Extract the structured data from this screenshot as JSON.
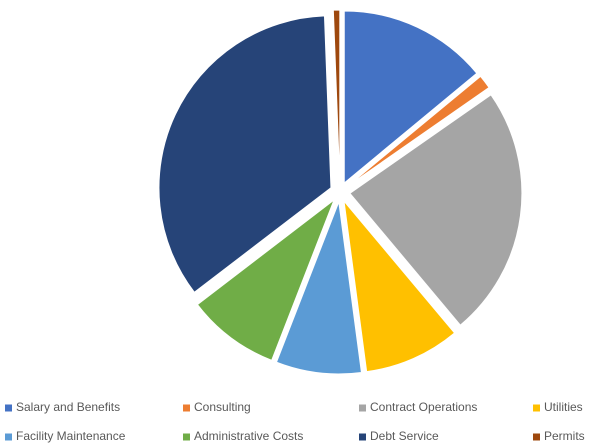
{
  "chart_data": {
    "type": "pie",
    "categories": [
      "Salary and Benefits",
      "Consulting",
      "Contract Operations",
      "Utilities",
      "Facility Maintenance",
      "Administrative Costs",
      "Debt Service",
      "Permits"
    ],
    "values": [
      14,
      1.3,
      23.6,
      9,
      8,
      8.7,
      34.8,
      0.6
    ],
    "colors": [
      "#4472c4",
      "#ed7d31",
      "#a5a5a5",
      "#ffc000",
      "#5b9bd5",
      "#70ad47",
      "#264478",
      "#9e480e"
    ],
    "exploded": true,
    "legend": "bottom"
  }
}
